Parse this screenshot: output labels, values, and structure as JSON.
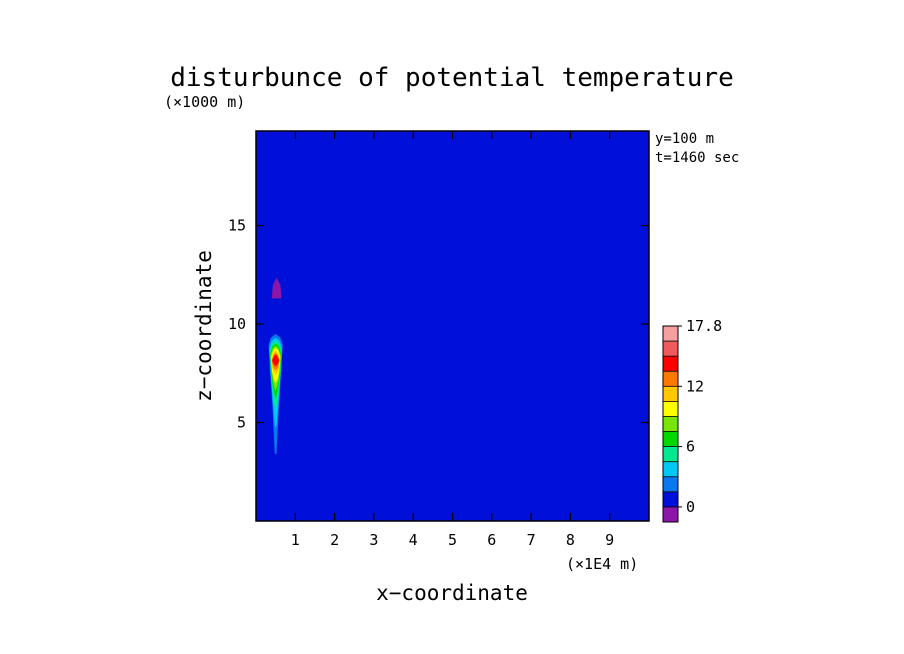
{
  "chart_data": {
    "type": "heatmap",
    "title": "disturbunce of potential temperature",
    "xlabel": "x−coordinate",
    "ylabel": "z−coordinate",
    "x_unit": "(×1E4 m)",
    "y_unit": "(×1000 m)",
    "annotations": [
      "y=100 m",
      "t=1460 sec"
    ],
    "xlim": [
      0,
      10
    ],
    "ylim": [
      0,
      19.8
    ],
    "x_ticks": [
      {
        "v": 1,
        "label": "1"
      },
      {
        "v": 2,
        "label": "2"
      },
      {
        "v": 3,
        "label": "3"
      },
      {
        "v": 4,
        "label": "4"
      },
      {
        "v": 5,
        "label": "5"
      },
      {
        "v": 6,
        "label": "6"
      },
      {
        "v": 7,
        "label": "7"
      },
      {
        "v": 8,
        "label": "8"
      },
      {
        "v": 9,
        "label": "9"
      }
    ],
    "y_ticks": [
      {
        "v": 5,
        "label": "5"
      },
      {
        "v": 10,
        "label": "10"
      },
      {
        "v": 15,
        "label": "15"
      }
    ],
    "colorbar": {
      "levels": [
        -1.5,
        0,
        1.5,
        3,
        4.5,
        6,
        7.5,
        9,
        10.5,
        12,
        13.5,
        15,
        16.5,
        17.8
      ],
      "tick_labels": [
        {
          "v": 0,
          "label": "0"
        },
        {
          "v": 6,
          "label": "6"
        },
        {
          "v": 12,
          "label": "12"
        },
        {
          "v": 17.8,
          "label": "17.8"
        }
      ],
      "colors": [
        "#8b16a8",
        "#0010d8",
        "#0a78f0",
        "#00c8f4",
        "#00e890",
        "#00d800",
        "#78e600",
        "#ffff00",
        "#ffc800",
        "#ff7800",
        "#ff0000",
        "#f05a5a",
        "#f5a0a0"
      ]
    },
    "background_color": "#0010d8",
    "regions": [
      {
        "name": "upper-light-layer",
        "level": 0,
        "outline": [
          [
            0.35,
            9.95
          ],
          [
            0.7,
            10.25
          ],
          [
            1.3,
            10.05
          ],
          [
            2.1,
            10.2
          ],
          [
            2.15,
            10.25
          ],
          [
            8.8,
            10.25
          ],
          [
            9.1,
            10.0
          ],
          [
            10,
            10.0
          ],
          [
            10,
            10.7
          ],
          [
            9.6,
            11.2
          ],
          [
            9.4,
            13.5
          ],
          [
            9.45,
            16.0
          ],
          [
            9.25,
            18.0
          ],
          [
            9.15,
            19.8
          ],
          [
            1.7,
            19.8
          ],
          [
            1.7,
            17.5
          ],
          [
            1.45,
            15.0
          ],
          [
            1.05,
            13.0
          ],
          [
            0.65,
            11.7
          ],
          [
            0.35,
            10.6
          ]
        ]
      },
      {
        "name": "top-left-light-patch",
        "level": 0,
        "outline": [
          [
            0,
            19.8
          ],
          [
            0.55,
            19.8
          ],
          [
            0.6,
            18.6
          ],
          [
            0.35,
            18.2
          ],
          [
            0,
            18.4
          ]
        ]
      },
      {
        "name": "cap-top",
        "level": -1.5,
        "outline": [
          [
            0.4,
            11.3
          ],
          [
            0.43,
            12.0
          ],
          [
            0.52,
            12.35
          ],
          [
            0.62,
            12.0
          ],
          [
            0.65,
            11.3
          ]
        ]
      },
      {
        "name": "plume-0",
        "level": 0,
        "outline": [
          [
            0.3,
            9.15
          ],
          [
            0.36,
            9.55
          ],
          [
            0.5,
            9.8
          ],
          [
            0.66,
            9.55
          ],
          [
            0.72,
            9.15
          ],
          [
            0.68,
            8.0
          ],
          [
            0.6,
            6.0
          ],
          [
            0.56,
            4.2
          ],
          [
            0.53,
            2.5
          ],
          [
            0.52,
            0.8
          ],
          [
            0.48,
            0.8
          ],
          [
            0.45,
            2.5
          ],
          [
            0.42,
            4.2
          ],
          [
            0.38,
            6.0
          ],
          [
            0.32,
            8.0
          ]
        ]
      },
      {
        "name": "plume-1.5",
        "level": 1.5,
        "outline": [
          [
            0.32,
            8.95
          ],
          [
            0.38,
            9.3
          ],
          [
            0.5,
            9.5
          ],
          [
            0.62,
            9.3
          ],
          [
            0.68,
            8.95
          ],
          [
            0.65,
            7.8
          ],
          [
            0.58,
            5.8
          ],
          [
            0.55,
            4.5
          ],
          [
            0.52,
            3.4
          ],
          [
            0.48,
            3.4
          ],
          [
            0.45,
            4.5
          ],
          [
            0.42,
            5.8
          ],
          [
            0.35,
            7.8
          ]
        ]
      },
      {
        "name": "plume-3",
        "level": 3,
        "outline": [
          [
            0.34,
            8.8
          ],
          [
            0.4,
            9.15
          ],
          [
            0.5,
            9.3
          ],
          [
            0.6,
            9.15
          ],
          [
            0.66,
            8.8
          ],
          [
            0.63,
            7.6
          ],
          [
            0.57,
            6.0
          ],
          [
            0.52,
            4.8
          ],
          [
            0.48,
            4.8
          ],
          [
            0.43,
            6.0
          ],
          [
            0.37,
            7.6
          ]
        ]
      },
      {
        "name": "plume-4.5",
        "level": 4.5,
        "outline": [
          [
            0.35,
            8.65
          ],
          [
            0.41,
            9.0
          ],
          [
            0.5,
            9.15
          ],
          [
            0.59,
            9.0
          ],
          [
            0.65,
            8.65
          ],
          [
            0.62,
            7.4
          ],
          [
            0.56,
            6.2
          ],
          [
            0.5,
            5.6
          ],
          [
            0.44,
            6.2
          ],
          [
            0.38,
            7.4
          ]
        ]
      },
      {
        "name": "plume-6",
        "level": 6,
        "outline": [
          [
            0.36,
            8.5
          ],
          [
            0.42,
            8.88
          ],
          [
            0.5,
            9.0
          ],
          [
            0.58,
            8.88
          ],
          [
            0.64,
            8.5
          ],
          [
            0.61,
            7.4
          ],
          [
            0.55,
            6.6
          ],
          [
            0.5,
            6.2
          ],
          [
            0.45,
            6.6
          ],
          [
            0.39,
            7.4
          ]
        ]
      },
      {
        "name": "plume-7.5",
        "level": 7.5,
        "outline": [
          [
            0.37,
            8.4
          ],
          [
            0.43,
            8.78
          ],
          [
            0.5,
            8.9
          ],
          [
            0.57,
            8.78
          ],
          [
            0.63,
            8.4
          ],
          [
            0.6,
            7.5
          ],
          [
            0.55,
            6.9
          ],
          [
            0.5,
            6.6
          ],
          [
            0.45,
            6.9
          ],
          [
            0.4,
            7.5
          ]
        ]
      },
      {
        "name": "plume-9",
        "level": 9,
        "outline": [
          [
            0.38,
            8.3
          ],
          [
            0.44,
            8.68
          ],
          [
            0.5,
            8.8
          ],
          [
            0.56,
            8.68
          ],
          [
            0.62,
            8.3
          ],
          [
            0.59,
            7.6
          ],
          [
            0.55,
            7.2
          ],
          [
            0.5,
            7.0
          ],
          [
            0.45,
            7.2
          ],
          [
            0.41,
            7.6
          ]
        ]
      },
      {
        "name": "plume-10.5",
        "level": 10.5,
        "outline": [
          [
            0.39,
            8.2
          ],
          [
            0.45,
            8.55
          ],
          [
            0.5,
            8.65
          ],
          [
            0.55,
            8.55
          ],
          [
            0.61,
            8.2
          ],
          [
            0.58,
            7.7
          ],
          [
            0.5,
            7.4
          ],
          [
            0.42,
            7.7
          ]
        ]
      },
      {
        "name": "plume-12",
        "level": 12,
        "outline": [
          [
            0.4,
            8.15
          ],
          [
            0.45,
            8.45
          ],
          [
            0.5,
            8.55
          ],
          [
            0.55,
            8.45
          ],
          [
            0.6,
            8.15
          ],
          [
            0.56,
            7.8
          ],
          [
            0.5,
            7.65
          ],
          [
            0.44,
            7.8
          ]
        ]
      },
      {
        "name": "plume-13.5",
        "level": 13.5,
        "outline": [
          [
            0.41,
            8.15
          ],
          [
            0.46,
            8.38
          ],
          [
            0.5,
            8.45
          ],
          [
            0.54,
            8.38
          ],
          [
            0.59,
            8.15
          ],
          [
            0.55,
            7.95
          ],
          [
            0.5,
            7.85
          ],
          [
            0.45,
            7.95
          ]
        ]
      }
    ]
  }
}
